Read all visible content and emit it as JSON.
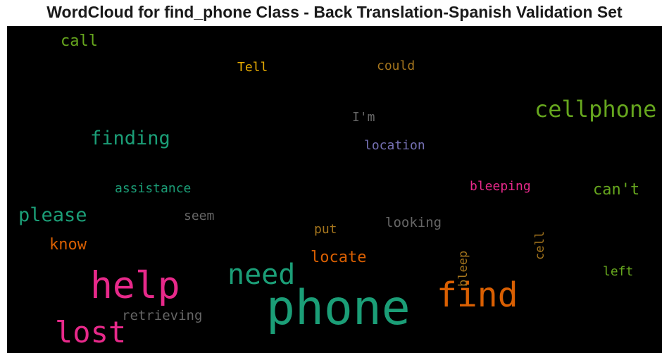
{
  "chart_data": {
    "type": "wordcloud",
    "title": "WordCloud for find_phone Class - Back Translation-Spanish Validation Set",
    "background": "#000000",
    "words": [
      {
        "text": "phone",
        "color": "#1b9e77",
        "rank": 1
      },
      {
        "text": "help",
        "color": "#e7298a",
        "rank": 2
      },
      {
        "text": "find",
        "color": "#d95f02",
        "rank": 3
      },
      {
        "text": "lost",
        "color": "#e7298a",
        "rank": 4
      },
      {
        "text": "need",
        "color": "#1b9e77",
        "rank": 5
      },
      {
        "text": "cellphone",
        "color": "#66a61e",
        "rank": 6
      },
      {
        "text": "please",
        "color": "#1b9e77",
        "rank": 7
      },
      {
        "text": "finding",
        "color": "#1b9e77",
        "rank": 8
      },
      {
        "text": "locate",
        "color": "#d95f02",
        "rank": 9
      },
      {
        "text": "can't",
        "color": "#66a61e",
        "rank": 10
      },
      {
        "text": "know",
        "color": "#d95f02",
        "rank": 11
      },
      {
        "text": "call",
        "color": "#66a61e",
        "rank": 12
      },
      {
        "text": "looking",
        "color": "#666666",
        "rank": 13
      },
      {
        "text": "retrieving",
        "color": "#666666",
        "rank": 14
      },
      {
        "text": "bleeping",
        "color": "#e7298a",
        "rank": 15
      },
      {
        "text": "assistance",
        "color": "#1b9e77",
        "rank": 16
      },
      {
        "text": "location",
        "color": "#7570b3",
        "rank": 17
      },
      {
        "text": "bleep",
        "color": "#a6761d",
        "rank": 18
      },
      {
        "text": "cell",
        "color": "#a6761d",
        "rank": 19
      },
      {
        "text": "I'm",
        "color": "#666666",
        "rank": 20
      },
      {
        "text": "seem",
        "color": "#666666",
        "rank": 21
      },
      {
        "text": "left",
        "color": "#66a61e",
        "rank": 22
      },
      {
        "text": "put",
        "color": "#a6761d",
        "rank": 23
      },
      {
        "text": "Tell",
        "color": "#e6ab02",
        "rank": 24
      },
      {
        "text": "could",
        "color": "#a6761d",
        "rank": 25
      }
    ]
  }
}
